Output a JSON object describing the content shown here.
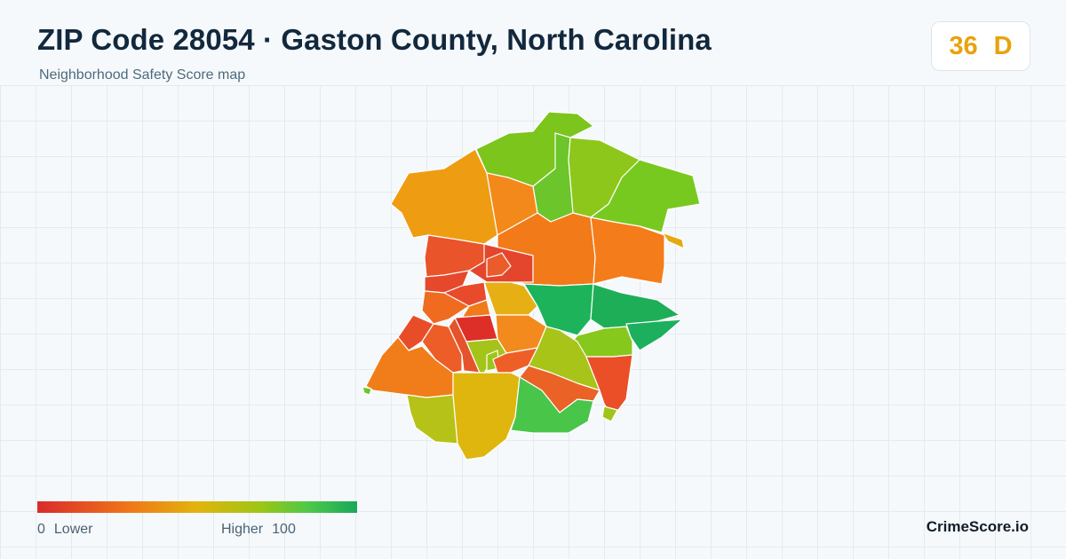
{
  "header": {
    "title": "ZIP Code 28054 · Gaston County, North Carolina",
    "subtitle": "Neighborhood Safety Score map"
  },
  "score": {
    "value": "36",
    "grade": "D",
    "color": "#e8a20c"
  },
  "legend": {
    "min_value": "0",
    "min_label": "Lower",
    "max_label": "Higher",
    "max_value": "100",
    "gradient": [
      "#d92b2b",
      "#f07a18",
      "#e2b40d",
      "#9cc615",
      "#4cc84a",
      "#19a85a"
    ]
  },
  "brand": "CrimeScore.io"
}
